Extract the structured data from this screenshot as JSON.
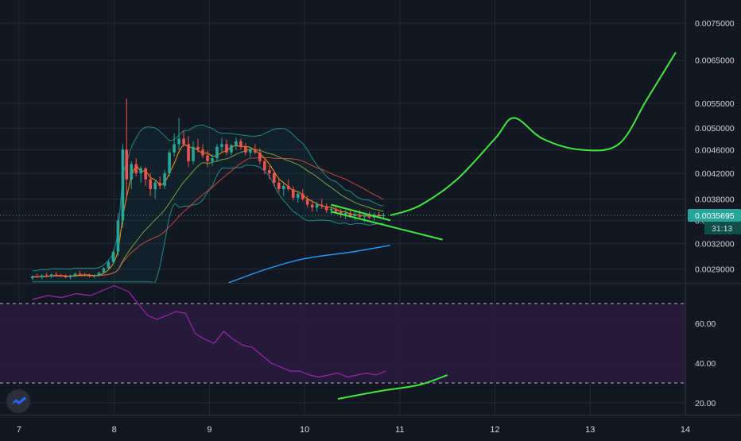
{
  "colors": {
    "background": "#131722",
    "grid": "#242a38",
    "axis_text": "#d1d4dc",
    "up": "#26a69a",
    "down": "#ef5350",
    "price_tag": "#26a69a",
    "rsi_line": "#9c27b0",
    "rsi_band": "#2a1b40",
    "drawing": "#3ee83e",
    "ma_orange": "#ff9800",
    "ma_red": "#e0523f",
    "ma_green": "#8bc34a",
    "ma_blue": "#2196f3",
    "bb": "#1a8d85"
  },
  "chart_data": [
    {
      "type": "candlestick",
      "title": "",
      "y_scale": "log",
      "y_ticks": [
        "0.0075000",
        "0.0065000",
        "0.0055000",
        "0.0050000",
        "0.0046000",
        "0.0042000",
        "0.0038000",
        "0.0035000",
        "0.0032000",
        "0.0029000"
      ],
      "y_ticks_values": [
        0.0075,
        0.0065,
        0.0055,
        0.005,
        0.0046,
        0.0042,
        0.0038,
        0.0035,
        0.0032,
        0.0029
      ],
      "x_ticks": [
        "7",
        "8",
        "9",
        "10",
        "11",
        "12",
        "13",
        "14"
      ],
      "x_ticks_values": [
        7,
        8,
        9,
        10,
        11,
        12,
        13,
        14
      ],
      "xlim": [
        6.8,
        14.0
      ],
      "ylim": [
        0.00275,
        0.0082
      ],
      "current_price": "0.0035695",
      "current_price_value": 0.0035695,
      "countdown": "31:13",
      "candles": [
        [
          7.14,
          0.0028,
          0.00283,
          0.00278,
          0.00282
        ],
        [
          7.19,
          0.00282,
          0.00285,
          0.0028,
          0.00281
        ],
        [
          7.24,
          0.00281,
          0.00284,
          0.00279,
          0.00283
        ],
        [
          7.29,
          0.00283,
          0.00286,
          0.00281,
          0.00282
        ],
        [
          7.34,
          0.00282,
          0.00285,
          0.0028,
          0.00284
        ],
        [
          7.39,
          0.00284,
          0.00287,
          0.00282,
          0.00283
        ],
        [
          7.44,
          0.00283,
          0.00285,
          0.00281,
          0.00282
        ],
        [
          7.49,
          0.00282,
          0.00284,
          0.0028,
          0.00281
        ],
        [
          7.54,
          0.00281,
          0.00284,
          0.00279,
          0.00283
        ],
        [
          7.59,
          0.00283,
          0.00286,
          0.00281,
          0.00285
        ],
        [
          7.64,
          0.00285,
          0.00288,
          0.00283,
          0.00284
        ],
        [
          7.69,
          0.00284,
          0.00286,
          0.00282,
          0.00283
        ],
        [
          7.74,
          0.00283,
          0.00285,
          0.00281,
          0.00282
        ],
        [
          7.79,
          0.00282,
          0.00284,
          0.0028,
          0.00283
        ],
        [
          7.84,
          0.00283,
          0.00287,
          0.00282,
          0.00286
        ],
        [
          7.89,
          0.00286,
          0.00292,
          0.00285,
          0.00291
        ],
        [
          7.94,
          0.00291,
          0.003,
          0.0029,
          0.00298
        ],
        [
          7.99,
          0.00298,
          0.00312,
          0.00296,
          0.0031
        ],
        [
          8.04,
          0.0031,
          0.0036,
          0.00305,
          0.0035
        ],
        [
          8.09,
          0.0035,
          0.0047,
          0.0034,
          0.0046
        ],
        [
          8.13,
          0.0046,
          0.0056,
          0.0038,
          0.0041
        ],
        [
          8.18,
          0.0041,
          0.0044,
          0.00395,
          0.00435
        ],
        [
          8.23,
          0.00435,
          0.00445,
          0.00415,
          0.0042
        ],
        [
          8.28,
          0.0042,
          0.00432,
          0.00405,
          0.00428
        ],
        [
          8.33,
          0.00428,
          0.0043,
          0.004,
          0.0041
        ],
        [
          8.38,
          0.0041,
          0.0042,
          0.00385,
          0.00395
        ],
        [
          8.43,
          0.00395,
          0.0041,
          0.0038,
          0.00405
        ],
        [
          8.48,
          0.00405,
          0.00415,
          0.00395,
          0.004
        ],
        [
          8.53,
          0.004,
          0.00425,
          0.00395,
          0.0042
        ],
        [
          8.58,
          0.0042,
          0.0046,
          0.00415,
          0.00455
        ],
        [
          8.63,
          0.00455,
          0.0049,
          0.00448,
          0.0047
        ],
        [
          8.68,
          0.0047,
          0.0052,
          0.0046,
          0.0048
        ],
        [
          8.73,
          0.0048,
          0.00495,
          0.00465,
          0.0047
        ],
        [
          8.78,
          0.0047,
          0.00485,
          0.0043,
          0.0044
        ],
        [
          8.83,
          0.0044,
          0.00475,
          0.00435,
          0.00465
        ],
        [
          8.88,
          0.00465,
          0.0048,
          0.00455,
          0.0046
        ],
        [
          8.93,
          0.0046,
          0.0047,
          0.00445,
          0.0045
        ],
        [
          8.98,
          0.0045,
          0.00458,
          0.0043,
          0.0044
        ],
        [
          9.03,
          0.0044,
          0.00452,
          0.00432,
          0.00445
        ],
        [
          9.08,
          0.00445,
          0.0047,
          0.0044,
          0.00465
        ],
        [
          9.13,
          0.00465,
          0.00482,
          0.00455,
          0.0047
        ],
        [
          9.18,
          0.0047,
          0.00478,
          0.0045,
          0.00455
        ],
        [
          9.23,
          0.00455,
          0.0047,
          0.0045,
          0.00468
        ],
        [
          9.28,
          0.00468,
          0.00482,
          0.0046,
          0.00475
        ],
        [
          9.33,
          0.00475,
          0.0048,
          0.0046,
          0.00465
        ],
        [
          9.38,
          0.00465,
          0.00472,
          0.0045,
          0.00455
        ],
        [
          9.43,
          0.00455,
          0.00465,
          0.00448,
          0.0046
        ],
        [
          9.48,
          0.0046,
          0.0047,
          0.00452,
          0.00455
        ],
        [
          9.53,
          0.00455,
          0.00462,
          0.00435,
          0.0044
        ],
        [
          9.58,
          0.0044,
          0.00445,
          0.00418,
          0.00425
        ],
        [
          9.63,
          0.00425,
          0.00432,
          0.0041,
          0.0042
        ],
        [
          9.68,
          0.0042,
          0.00425,
          0.004,
          0.00405
        ],
        [
          9.73,
          0.00405,
          0.00412,
          0.0039,
          0.00395
        ],
        [
          9.78,
          0.00395,
          0.00405,
          0.00385,
          0.004
        ],
        [
          9.83,
          0.004,
          0.0041,
          0.00392,
          0.00395
        ],
        [
          9.88,
          0.00395,
          0.004,
          0.00378,
          0.00382
        ],
        [
          9.93,
          0.00382,
          0.00392,
          0.00375,
          0.00388
        ],
        [
          9.98,
          0.00388,
          0.00395,
          0.00378,
          0.0038
        ],
        [
          10.03,
          0.0038,
          0.00385,
          0.00368,
          0.00372
        ],
        [
          10.08,
          0.00372,
          0.00378,
          0.00362,
          0.00368
        ],
        [
          10.13,
          0.00368,
          0.00376,
          0.00362,
          0.00372
        ],
        [
          10.18,
          0.00372,
          0.0038,
          0.00366,
          0.0037
        ],
        [
          10.23,
          0.0037,
          0.00374,
          0.0036,
          0.00364
        ],
        [
          10.28,
          0.00364,
          0.0037,
          0.00358,
          0.00366
        ],
        [
          10.33,
          0.00366,
          0.00372,
          0.0036,
          0.00362
        ],
        [
          10.38,
          0.00362,
          0.00366,
          0.00354,
          0.00358
        ],
        [
          10.43,
          0.00358,
          0.00364,
          0.00352,
          0.0036
        ],
        [
          10.48,
          0.0036,
          0.00366,
          0.00354,
          0.00356
        ],
        [
          10.53,
          0.00356,
          0.00362,
          0.0035,
          0.00358
        ],
        [
          10.58,
          0.00358,
          0.00364,
          0.00352,
          0.00355
        ],
        [
          10.63,
          0.00355,
          0.0036,
          0.00348,
          0.00357
        ],
        [
          10.68,
          0.00357,
          0.00362,
          0.00352,
          0.00354
        ],
        [
          10.73,
          0.00354,
          0.0036,
          0.0035,
          0.00358
        ],
        [
          10.78,
          0.00358,
          0.00362,
          0.00354,
          0.00356
        ],
        [
          10.83,
          0.00356,
          0.0036,
          0.00352,
          0.00357
        ]
      ]
    },
    {
      "type": "line",
      "title": "",
      "y_ticks": [
        "60.00",
        "40.00",
        "20.00"
      ],
      "y_ticks_values": [
        60,
        40,
        20
      ],
      "ylim": [
        14,
        80
      ],
      "bands": [
        70,
        30
      ],
      "series": [
        {
          "x": [
            7.14,
            7.3,
            7.45,
            7.6,
            7.75,
            7.9,
            8.0,
            8.05,
            8.1,
            8.15,
            8.25,
            8.35,
            8.45,
            8.55,
            8.65,
            8.75,
            8.85,
            8.95,
            9.05,
            9.15,
            9.25,
            9.35,
            9.45,
            9.55,
            9.65,
            9.75,
            9.85,
            9.95,
            10.05,
            10.15,
            10.25,
            10.35,
            10.45,
            10.55,
            10.65,
            10.75,
            10.85
          ],
          "values": [
            72,
            74,
            73,
            75,
            74,
            77,
            79,
            78,
            77,
            76,
            70,
            64,
            62,
            64,
            66,
            65,
            55,
            52,
            50,
            56,
            52,
            49,
            48,
            44,
            40,
            38,
            36,
            36,
            34,
            33,
            34,
            35,
            33,
            34,
            35,
            34,
            36
          ]
        }
      ]
    }
  ],
  "drawings": {
    "forecast_curve": [
      [
        10.9,
        0.00357
      ],
      [
        11.2,
        0.0037
      ],
      [
        11.6,
        0.0041
      ],
      [
        12.0,
        0.0048
      ],
      [
        12.2,
        0.0052
      ],
      [
        12.5,
        0.0048
      ],
      [
        12.9,
        0.0046
      ],
      [
        13.3,
        0.0047
      ],
      [
        13.6,
        0.0056
      ],
      [
        13.9,
        0.0067
      ]
    ],
    "upper_trendline": [
      [
        10.28,
        0.00372
      ],
      [
        10.9,
        0.0035
      ]
    ],
    "lower_trendline": [
      [
        10.28,
        0.00362
      ],
      [
        11.45,
        0.00325
      ]
    ],
    "rsi_trendline": [
      [
        10.35,
        22
      ],
      [
        11.5,
        34
      ]
    ]
  }
}
